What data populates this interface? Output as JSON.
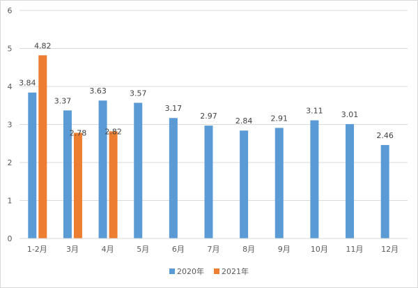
{
  "chart_data": {
    "type": "bar",
    "categories": [
      "1-2月",
      "3月",
      "4月",
      "5月",
      "6月",
      "7月",
      "8月",
      "9月",
      "10月",
      "11月",
      "12月"
    ],
    "series": [
      {
        "name": "2020年",
        "color": "#5b9bd5",
        "values": [
          3.84,
          3.37,
          3.63,
          3.57,
          3.17,
          2.97,
          2.84,
          2.91,
          3.11,
          3.01,
          2.46
        ]
      },
      {
        "name": "2021年",
        "color": "#ed7d31",
        "values": [
          4.82,
          2.78,
          2.82,
          null,
          null,
          null,
          null,
          null,
          null,
          null,
          null
        ]
      }
    ],
    "ylim": [
      0,
      6
    ],
    "yticks": [
      0,
      1,
      2,
      3,
      4,
      5,
      6
    ],
    "grid": true,
    "legend": "bottom",
    "data_labels": true
  }
}
